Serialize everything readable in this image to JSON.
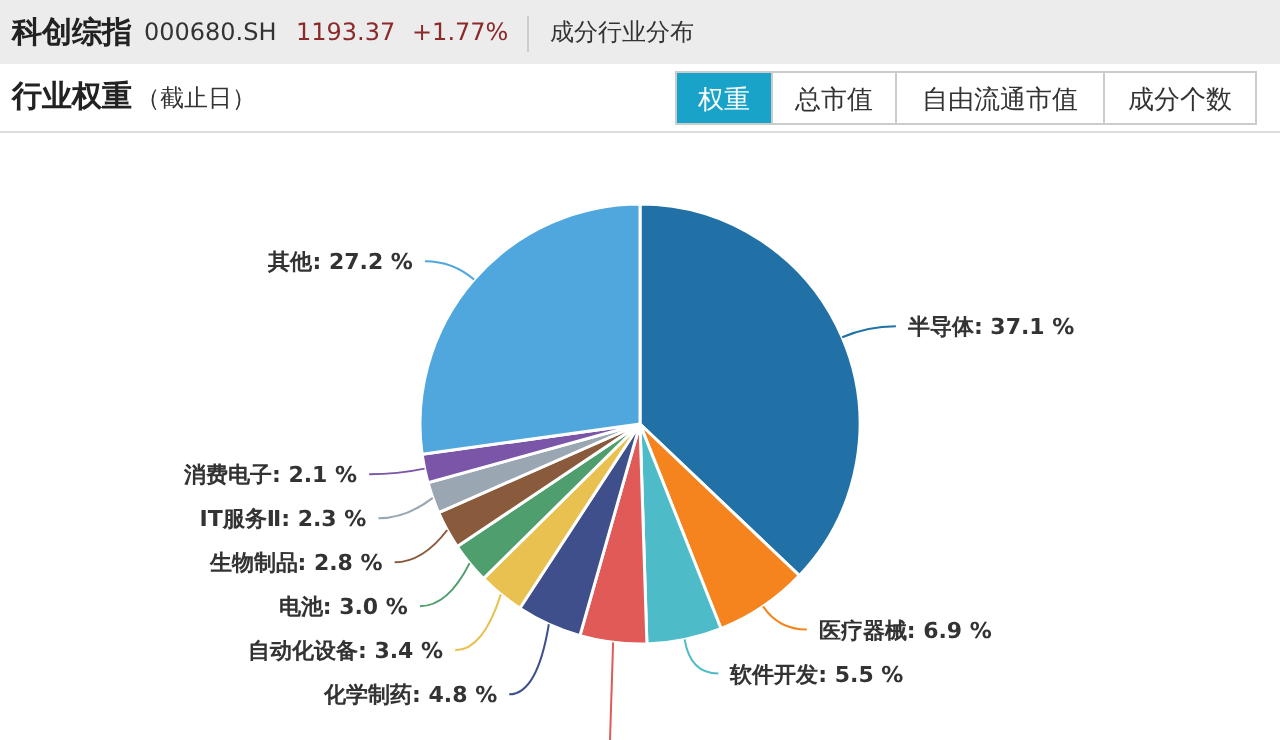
{
  "chart_data": {
    "type": "pie",
    "title": "行业权重",
    "subtitle": "（截止日）",
    "annotations": [
      "科创综指",
      "000680.SH",
      "1193.37",
      "+1.77%",
      "成分行业分布",
      "权重",
      "总市值",
      "自由流通市值",
      "成分个数"
    ],
    "categories": [
      "半导体",
      "医疗器械",
      "软件开发",
      null,
      "化学制药",
      "自动化设备",
      "电池",
      "生物制品",
      "IT服务Ⅱ",
      "消费电子",
      "其他"
    ],
    "values": [
      37.1,
      6.9,
      5.5,
      4.9,
      4.8,
      3.4,
      3.0,
      2.8,
      2.3,
      2.1,
      27.2
    ],
    "value_labels": [
      "37.1 %",
      "6.9 %",
      "5.5 %",
      null,
      "4.8 %",
      "3.4 %",
      "3.0 %",
      "2.8 %",
      "2.3 %",
      "2.1 %",
      "27.2 %"
    ],
    "colors": [
      "#2171a6",
      "#f5841f",
      "#4dbcc8",
      "#e05a57",
      "#3f4f8c",
      "#e8c150",
      "#4f9e6e",
      "#8a5a3c",
      "#9aa6b2",
      "#7a55a8",
      "#4fa7dd"
    ]
  }
}
